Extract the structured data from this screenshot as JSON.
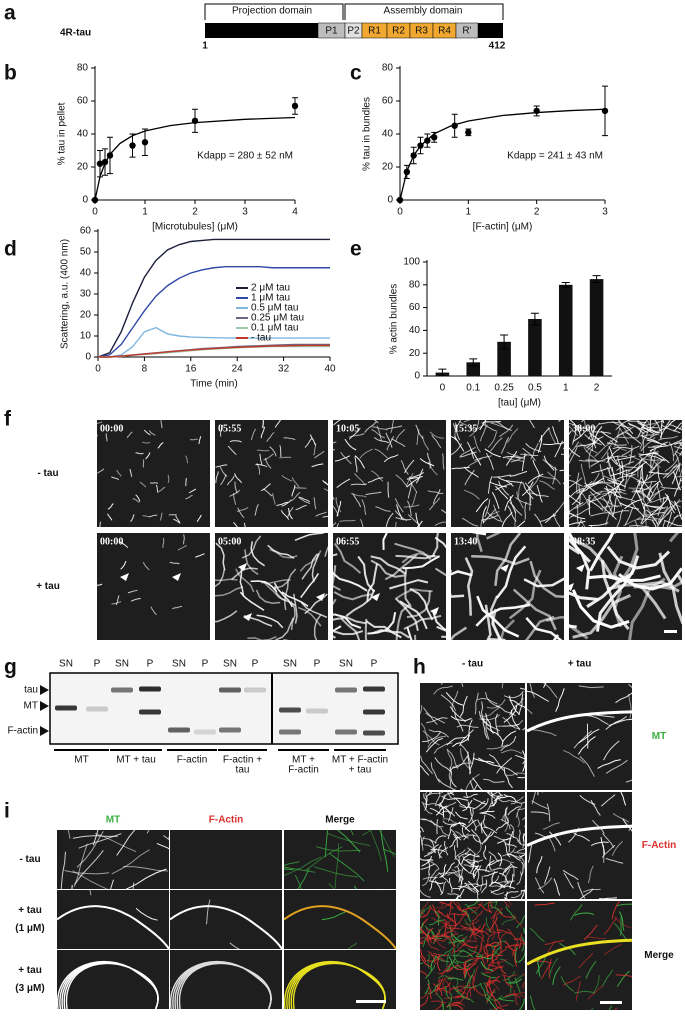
{
  "panel_labels": [
    "a",
    "b",
    "c",
    "d",
    "e",
    "f",
    "g",
    "h",
    "i"
  ],
  "panel_a": {
    "protein": "4R-tau",
    "domains": [
      "Projection domain",
      "Assembly domain"
    ],
    "segments": [
      "P1",
      "P2",
      "R1",
      "R2",
      "R3",
      "R4",
      "R'"
    ],
    "start": 1,
    "end": 412
  },
  "chart_data": [
    {
      "type": "scatter",
      "x_label": "[Microtubules] (μM)",
      "y_label": "% tau in pellet",
      "annotation": "Kdapp = 280 ± 52 nM",
      "xlim": [
        0,
        4
      ],
      "xticks": [
        0,
        1,
        2,
        3,
        4
      ],
      "ylim": [
        0,
        80
      ],
      "yticks": [
        0,
        20,
        40,
        60,
        80
      ],
      "x": [
        0,
        0.1,
        0.2,
        0.3,
        0.75,
        1,
        2,
        4
      ],
      "values": [
        0,
        22,
        23,
        27,
        33,
        35,
        48,
        57
      ],
      "errors": [
        0,
        8,
        8,
        11,
        7,
        8,
        7,
        5
      ],
      "fit_x": [
        0,
        0.1,
        0.2,
        0.3,
        0.5,
        0.75,
        1,
        1.5,
        2,
        3,
        4
      ],
      "fit_values": [
        0,
        14.1,
        22.3,
        27.7,
        34.3,
        39.0,
        41.8,
        45.1,
        46.9,
        48.9,
        50.0
      ]
    },
    {
      "type": "scatter",
      "x_label": "[F-actin] (μM)",
      "y_label": "% tau in bundles",
      "annotation": "Kdapp = 241 ± 43 nM",
      "xlim": [
        0,
        3
      ],
      "xticks": [
        0,
        1,
        2,
        3
      ],
      "ylim": [
        0,
        80
      ],
      "yticks": [
        0,
        20,
        40,
        60,
        80
      ],
      "x": [
        0,
        0.1,
        0.2,
        0.3,
        0.4,
        0.5,
        0.8,
        1,
        2,
        3
      ],
      "values": [
        0,
        17,
        27,
        33,
        36,
        38,
        45,
        41,
        54,
        54
      ],
      "errors": [
        0,
        4,
        5,
        5,
        4,
        3,
        7,
        2,
        3,
        15
      ],
      "fit_x": [
        0,
        0.1,
        0.2,
        0.3,
        0.5,
        0.75,
        1,
        1.5,
        2,
        2.5,
        3
      ],
      "fit_values": [
        0,
        17.4,
        26.9,
        32.9,
        40.1,
        45.0,
        47.9,
        51.2,
        53.0,
        54.2,
        55.0
      ]
    },
    {
      "type": "line",
      "x_label": "Time (min)",
      "y_label": "Scattering, a.u. (400 nm)",
      "xlim": [
        0,
        40
      ],
      "xticks": [
        0,
        8,
        16,
        24,
        32,
        40
      ],
      "ylim": [
        0,
        60
      ],
      "yticks": [
        0,
        10,
        20,
        30,
        40,
        50,
        60
      ],
      "legend": "right",
      "x": [
        0,
        2,
        4,
        6,
        8,
        10,
        12,
        14,
        16,
        18,
        20,
        22,
        24,
        26,
        28,
        30,
        32,
        34,
        36,
        38,
        40
      ],
      "series": [
        {
          "name": "2 μM tau",
          "color": "#1b1f3b",
          "values": [
            0,
            2,
            12,
            26,
            38,
            46,
            51,
            53.5,
            55,
            55.5,
            56,
            56,
            56,
            56,
            56,
            56,
            56,
            56,
            56,
            56,
            56
          ]
        },
        {
          "name": "1 μM tau",
          "color": "#3049a6",
          "values": [
            0,
            1,
            6,
            14,
            22,
            29,
            34,
            37.5,
            40,
            41.5,
            42.5,
            43,
            43,
            43,
            43,
            42.5,
            42.5,
            42.5,
            42.5,
            42.5,
            42.5
          ]
        },
        {
          "name": "0.5 μM tau",
          "color": "#7fb6df",
          "values": [
            0,
            0,
            1,
            5,
            12,
            14,
            11,
            10,
            9.5,
            9.3,
            9.2,
            9.1,
            9,
            9,
            9,
            9,
            9,
            9,
            9,
            9,
            9
          ]
        },
        {
          "name": "0.25 μM tau",
          "color": "#6e6680",
          "values": [
            0,
            0,
            0.5,
            1,
            1.5,
            2,
            2.5,
            3,
            3.5,
            4,
            4.3,
            4.6,
            5,
            5.2,
            5.4,
            5.6,
            5.8,
            6,
            6,
            6,
            6
          ]
        },
        {
          "name": "0.1 μM tau",
          "color": "#9fc7a8",
          "values": [
            0,
            0,
            0.3,
            0.8,
            1.2,
            1.6,
            2,
            2.5,
            3,
            3.4,
            3.8,
            4.1,
            4.4,
            4.6,
            4.8,
            5,
            5,
            5,
            5,
            5,
            5
          ]
        },
        {
          "name": "- tau",
          "color": "#c0392b",
          "values": [
            0,
            0,
            0.4,
            0.9,
            1.4,
            1.9,
            2.4,
            2.9,
            3.3,
            3.7,
            4,
            4.3,
            4.6,
            4.8,
            5,
            5.2,
            5.3,
            5.4,
            5.5,
            5.5,
            5.5
          ]
        }
      ]
    },
    {
      "type": "bar",
      "x_label": "[tau] (μM)",
      "y_label": "% actin bundles",
      "color": "#111111",
      "ylim": [
        0,
        100
      ],
      "yticks": [
        0,
        20,
        40,
        60,
        80,
        100
      ],
      "categories": [
        "0",
        "0.1",
        "0.25",
        "0.5",
        "1",
        "2"
      ],
      "values": [
        3,
        12,
        30,
        50,
        80,
        85
      ],
      "errors": [
        3,
        3,
        6,
        5,
        2,
        3
      ]
    }
  ],
  "panel_f": {
    "rows": [
      {
        "label": "- tau",
        "times": [
          "00:00",
          "05:55",
          "10:05",
          "15:35",
          "38:00"
        ]
      },
      {
        "label": "+ tau",
        "times": [
          "00:00",
          "05:00",
          "06:55",
          "13:40",
          "38:35"
        ]
      }
    ]
  },
  "panel_g": {
    "lanes": [
      "SN",
      "P",
      "SN",
      "P",
      "SN",
      "P",
      "SN",
      "P",
      "SN",
      "P",
      "SN",
      "P"
    ],
    "markers": [
      "tau",
      "MT",
      "F-actin"
    ],
    "groups": [
      [
        "MT"
      ],
      [
        "MT + tau"
      ],
      [
        "F-actin"
      ],
      [
        "F-actin +",
        "tau"
      ],
      [
        "MT +",
        "F-actin"
      ],
      [
        "MT + F-actin",
        "+ tau"
      ]
    ]
  },
  "panel_h": {
    "columns": [
      "- tau",
      "+ tau"
    ],
    "rows": [
      "MT",
      "F-Actin",
      "Merge"
    ],
    "row_colors": [
      "#3cb043",
      "#d9302c",
      "#111111"
    ]
  },
  "panel_i": {
    "columns": [
      "MT",
      "F-Actin",
      "Merge"
    ],
    "column_colors": [
      "#3cb043",
      "#d9302c",
      "#111111"
    ],
    "rows": [
      [
        "- tau"
      ],
      [
        "+ tau",
        "(1 μM)"
      ],
      [
        "+ tau",
        "(3 μM)"
      ]
    ]
  }
}
